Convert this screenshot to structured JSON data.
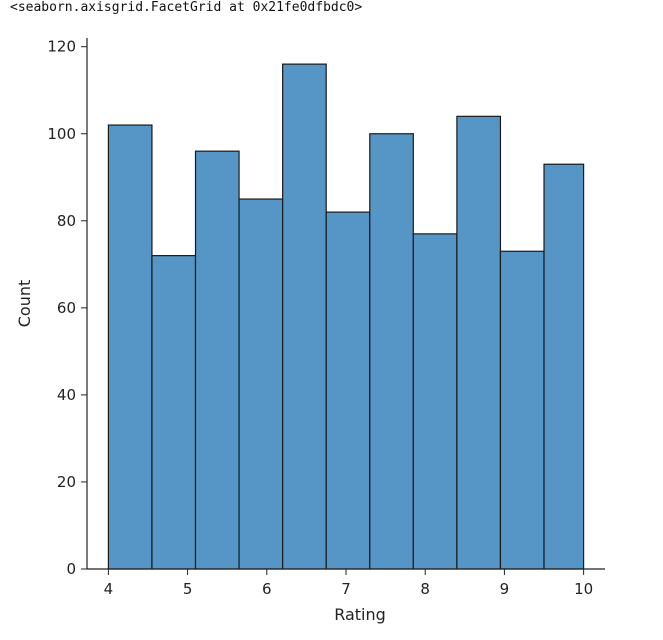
{
  "output_repr": "<seaborn.axisgrid.FacetGrid at 0x21fe0dfbdc0>",
  "chart_data": {
    "type": "bar",
    "xlabel": "Rating",
    "ylabel": "Count",
    "xlim": [
      3.73,
      10.27
    ],
    "ylim": [
      0,
      122
    ],
    "xticks": [
      4,
      5,
      6,
      7,
      8,
      9,
      10
    ],
    "yticks": [
      0,
      20,
      40,
      60,
      80,
      100,
      120
    ],
    "grid": false,
    "bar_color": "#5596c6",
    "edge_color": "#1a1a1a",
    "bins": [
      {
        "x0": 4.0,
        "x1": 4.55,
        "count": 102
      },
      {
        "x0": 4.55,
        "x1": 5.1,
        "count": 72
      },
      {
        "x0": 5.1,
        "x1": 5.65,
        "count": 96
      },
      {
        "x0": 5.65,
        "x1": 6.2,
        "count": 85
      },
      {
        "x0": 6.2,
        "x1": 6.75,
        "count": 116
      },
      {
        "x0": 6.75,
        "x1": 7.3,
        "count": 82
      },
      {
        "x0": 7.3,
        "x1": 7.85,
        "count": 100
      },
      {
        "x0": 7.85,
        "x1": 8.4,
        "count": 77
      },
      {
        "x0": 8.4,
        "x1": 8.95,
        "count": 104
      },
      {
        "x0": 8.95,
        "x1": 9.5,
        "count": 73
      },
      {
        "x0": 9.5,
        "x1": 10.0,
        "count": 93
      }
    ]
  }
}
